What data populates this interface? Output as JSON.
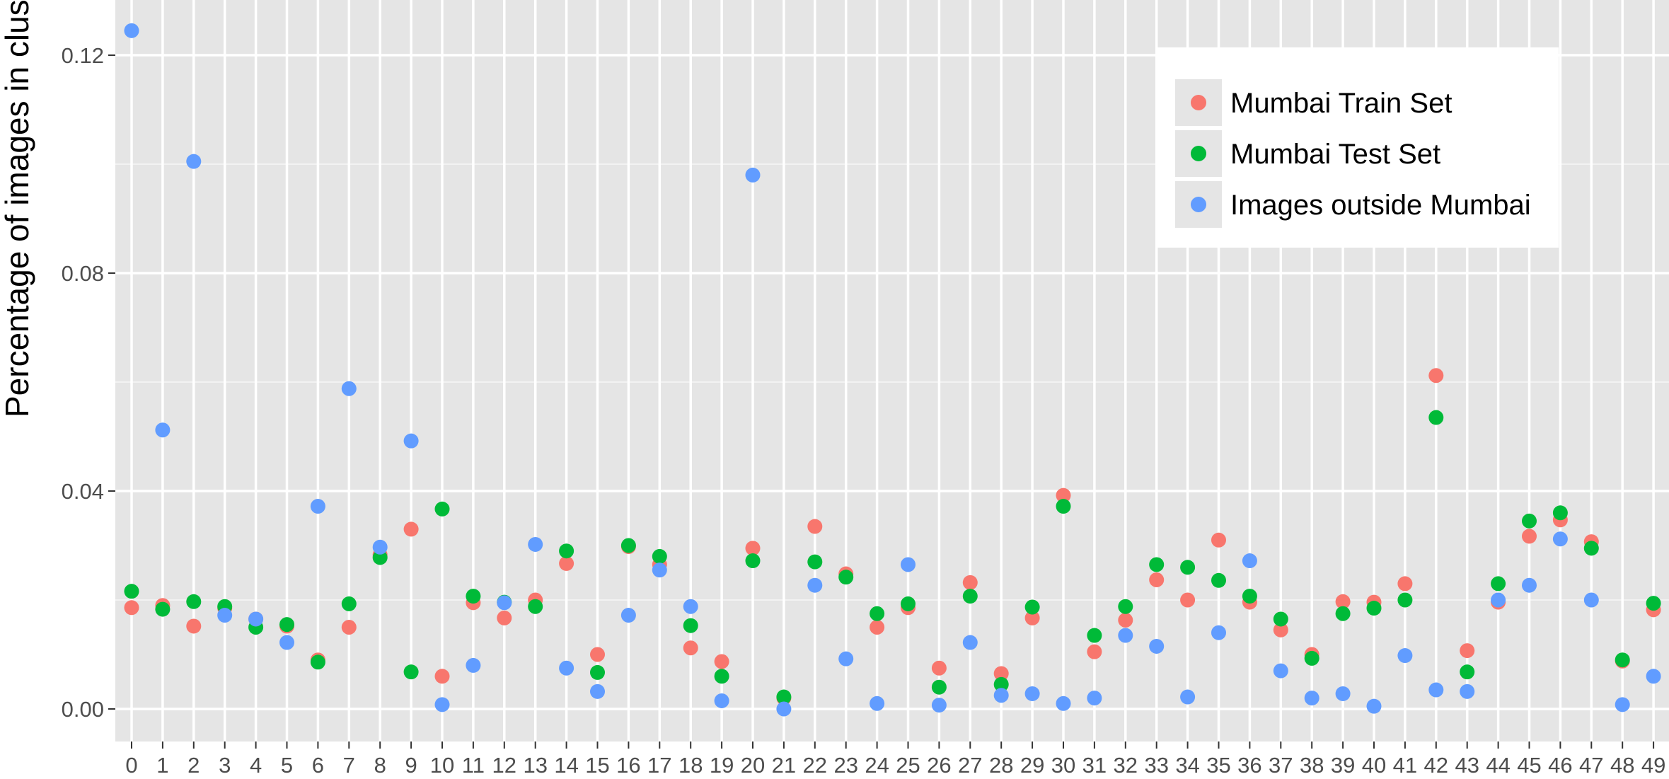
{
  "chart_data": {
    "type": "scatter",
    "title": "",
    "xlabel": "",
    "ylabel": "Percentage of images in clusters",
    "categories": [
      "0",
      "1",
      "2",
      "3",
      "4",
      "5",
      "6",
      "7",
      "8",
      "9",
      "10",
      "11",
      "12",
      "13",
      "14",
      "15",
      "16",
      "17",
      "18",
      "19",
      "20",
      "21",
      "22",
      "23",
      "24",
      "25",
      "26",
      "27",
      "28",
      "29",
      "30",
      "31",
      "32",
      "33",
      "34",
      "35",
      "36",
      "37",
      "38",
      "39",
      "40",
      "41",
      "42",
      "43",
      "44",
      "45",
      "46",
      "47",
      "48",
      "49"
    ],
    "ylim": [
      -0.006,
      0.128
    ],
    "yticks": [
      0.0,
      0.04,
      0.08,
      0.12
    ],
    "ytick_labels": [
      "0.00",
      "0.04",
      "0.08",
      "0.12"
    ],
    "grid": true,
    "legend_position": "top-right",
    "series": [
      {
        "name": "Mumbai Train Set",
        "color": "#F8766D",
        "values": [
          0.0186,
          0.019,
          0.0152,
          0.0185,
          0.0165,
          0.0152,
          0.009,
          0.015,
          0.0283,
          0.033,
          0.006,
          0.0195,
          0.0167,
          0.02,
          0.0267,
          0.01,
          0.0298,
          0.0265,
          0.0112,
          0.0087,
          0.0295,
          0.002,
          0.0335,
          0.0248,
          0.015,
          0.0186,
          0.0075,
          0.0232,
          0.0065,
          0.0167,
          0.0392,
          0.0105,
          0.0163,
          0.0237,
          0.02,
          0.031,
          0.0196,
          0.0145,
          0.01,
          0.0197,
          0.0196,
          0.023,
          0.0612,
          0.0107,
          0.0196,
          0.0317,
          0.0347,
          0.0307,
          0.0088,
          0.0182
        ]
      },
      {
        "name": "Mumbai Test Set",
        "color": "#00BA38",
        "values": [
          0.0216,
          0.0183,
          0.0197,
          0.0188,
          0.015,
          0.0155,
          0.0086,
          0.0193,
          0.0278,
          0.0068,
          0.0367,
          0.0207,
          0.0196,
          0.0188,
          0.029,
          0.0067,
          0.03,
          0.028,
          0.0153,
          0.006,
          0.0272,
          0.0022,
          0.027,
          0.0242,
          0.0175,
          0.0193,
          0.004,
          0.0207,
          0.0045,
          0.0187,
          0.0372,
          0.0135,
          0.0188,
          0.0265,
          0.026,
          0.0236,
          0.0207,
          0.0165,
          0.0093,
          0.0175,
          0.0185,
          0.02,
          0.0535,
          0.0068,
          0.023,
          0.0345,
          0.036,
          0.0295,
          0.009,
          0.0194
        ]
      },
      {
        "name": "Images outside Mumbai",
        "color": "#619CFF",
        "values": [
          0.1245,
          0.0512,
          0.1005,
          0.0172,
          0.0165,
          0.0122,
          0.0372,
          0.0588,
          0.0297,
          0.0492,
          0.0008,
          0.008,
          0.0195,
          0.0302,
          0.0075,
          0.0032,
          0.0172,
          0.0255,
          0.0188,
          0.0015,
          0.098,
          0.0,
          0.0227,
          0.0092,
          0.001,
          0.0265,
          0.0007,
          0.0122,
          0.0025,
          0.0028,
          0.001,
          0.002,
          0.0135,
          0.0115,
          0.0022,
          0.014,
          0.0272,
          0.007,
          0.002,
          0.0028,
          0.0005,
          0.0098,
          0.0035,
          0.0032,
          0.02,
          0.0227,
          0.0312,
          0.02,
          0.0008,
          0.006
        ]
      }
    ]
  }
}
